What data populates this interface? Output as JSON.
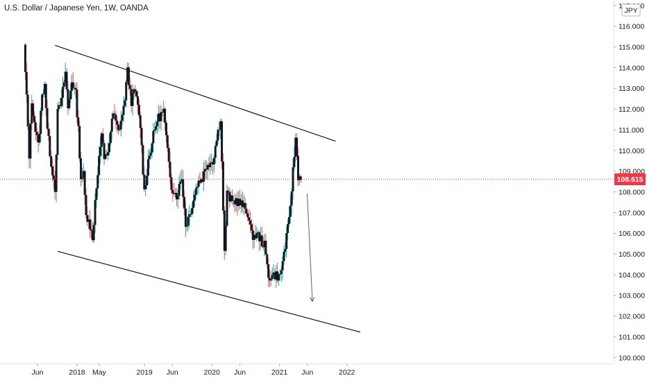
{
  "header": {
    "title": "U.S. Dollar / Japanese Yen, 1W, OANDA"
  },
  "price_axis": {
    "currency_label": "JPY",
    "current_price_label": "108.615",
    "tick_labels": [
      "117.000",
      "116.000",
      "115.000",
      "114.000",
      "113.000",
      "112.000",
      "111.000",
      "110.000",
      "109.000",
      "108.000",
      "107.000",
      "106.000",
      "105.000",
      "104.000",
      "103.000",
      "102.000",
      "101.000",
      "100.000"
    ]
  },
  "time_axis": {
    "tick_labels": [
      "Jun",
      "2018",
      "May",
      "2019",
      "Jun",
      "2020",
      "Jun",
      "2021",
      "Jun",
      "2022"
    ]
  },
  "colors": {
    "up": "#26a69a",
    "down": "#ef5350",
    "body": "#131722",
    "current_price": "#f23645",
    "trendline": "#131722",
    "forecast_arrow": "#5d606b"
  },
  "chart_data": {
    "type": "candlestick",
    "title": "U.S. Dollar / Japanese Yen, 1W, OANDA",
    "y_unit": "JPY",
    "y_range": [
      100,
      117.3
    ],
    "x_range": [
      "2017-03-20",
      "2022-03-14"
    ],
    "current_price": 108.615,
    "weekly_closes": [
      {
        "t": "2017-03-20",
        "c": 115.0
      },
      {
        "t": "2017-04-03",
        "c": 112.5
      },
      {
        "t": "2017-04-17",
        "c": 109.8
      },
      {
        "t": "2017-05-01",
        "c": 112.4
      },
      {
        "t": "2017-05-15",
        "c": 111.4
      },
      {
        "t": "2017-06-05",
        "c": 110.2
      },
      {
        "t": "2017-06-26",
        "c": 112.6
      },
      {
        "t": "2017-07-10",
        "c": 113.3
      },
      {
        "t": "2017-07-24",
        "c": 111.0
      },
      {
        "t": "2017-08-14",
        "c": 109.4
      },
      {
        "t": "2017-09-04",
        "c": 108.2
      },
      {
        "t": "2017-09-18",
        "c": 111.8
      },
      {
        "t": "2017-10-09",
        "c": 112.4
      },
      {
        "t": "2017-10-30",
        "c": 113.8
      },
      {
        "t": "2017-11-13",
        "c": 112.0
      },
      {
        "t": "2017-12-04",
        "c": 113.4
      },
      {
        "t": "2017-12-25",
        "c": 112.7
      },
      {
        "t": "2018-01-08",
        "c": 111.0
      },
      {
        "t": "2018-01-22",
        "c": 108.7
      },
      {
        "t": "2018-02-05",
        "c": 108.8
      },
      {
        "t": "2018-02-19",
        "c": 106.8
      },
      {
        "t": "2018-03-05",
        "c": 106.8
      },
      {
        "t": "2018-03-26",
        "c": 105.6
      },
      {
        "t": "2018-04-09",
        "c": 107.6
      },
      {
        "t": "2018-04-23",
        "c": 109.0
      },
      {
        "t": "2018-05-14",
        "c": 110.8
      },
      {
        "t": "2018-05-28",
        "c": 109.5
      },
      {
        "t": "2018-06-18",
        "c": 110.0
      },
      {
        "t": "2018-07-16",
        "c": 111.8
      },
      {
        "t": "2018-08-13",
        "c": 110.9
      },
      {
        "t": "2018-09-10",
        "c": 112.0
      },
      {
        "t": "2018-10-01",
        "c": 113.8
      },
      {
        "t": "2018-10-22",
        "c": 112.4
      },
      {
        "t": "2018-11-12",
        "c": 112.9
      },
      {
        "t": "2018-12-10",
        "c": 111.2
      },
      {
        "t": "2018-12-31",
        "c": 108.0
      },
      {
        "t": "2019-01-21",
        "c": 109.5
      },
      {
        "t": "2019-02-18",
        "c": 110.7
      },
      {
        "t": "2019-03-11",
        "c": 111.5
      },
      {
        "t": "2019-04-15",
        "c": 111.9
      },
      {
        "t": "2019-05-06",
        "c": 109.9
      },
      {
        "t": "2019-05-27",
        "c": 108.3
      },
      {
        "t": "2019-06-24",
        "c": 107.8
      },
      {
        "t": "2019-07-22",
        "c": 108.7
      },
      {
        "t": "2019-08-12",
        "c": 106.4
      },
      {
        "t": "2019-09-02",
        "c": 106.9
      },
      {
        "t": "2019-10-14",
        "c": 108.4
      },
      {
        "t": "2019-11-11",
        "c": 108.7
      },
      {
        "t": "2019-12-09",
        "c": 109.4
      },
      {
        "t": "2020-01-06",
        "c": 109.5
      },
      {
        "t": "2020-02-17",
        "c": 111.6
      },
      {
        "t": "2020-03-09",
        "c": 105.0
      },
      {
        "t": "2020-03-23",
        "c": 107.9
      },
      {
        "t": "2020-04-20",
        "c": 107.5
      },
      {
        "t": "2020-05-11",
        "c": 107.6
      },
      {
        "t": "2020-06-08",
        "c": 107.4
      },
      {
        "t": "2020-07-13",
        "c": 107.0
      },
      {
        "t": "2020-08-03",
        "c": 105.9
      },
      {
        "t": "2020-09-07",
        "c": 105.9
      },
      {
        "t": "2020-10-12",
        "c": 105.4
      },
      {
        "t": "2020-11-02",
        "c": 103.9
      },
      {
        "t": "2020-12-07",
        "c": 104.0
      },
      {
        "t": "2021-01-04",
        "c": 103.9
      },
      {
        "t": "2021-02-01",
        "c": 105.4
      },
      {
        "t": "2021-02-22",
        "c": 106.6
      },
      {
        "t": "2021-03-15",
        "c": 109.0
      },
      {
        "t": "2021-03-29",
        "c": 110.6
      },
      {
        "t": "2021-04-12",
        "c": 108.8
      },
      {
        "t": "2021-04-26",
        "c": 108.6
      }
    ],
    "trendlines": [
      {
        "name": "upper channel",
        "from": {
          "t": "2017-09-04",
          "y": 115.08
        },
        "to": {
          "t": "2021-11-01",
          "y": 110.45
        }
      },
      {
        "name": "lower channel",
        "from": {
          "t": "2017-09-18",
          "y": 105.13
        },
        "to": {
          "t": "2022-03-14",
          "y": 101.23
        }
      }
    ],
    "forecast_arrow": {
      "from": {
        "t": "2021-05-31",
        "y": 107.92
      },
      "to": {
        "t": "2021-06-28",
        "y": 102.7
      }
    },
    "grid": false,
    "legend": "none"
  }
}
